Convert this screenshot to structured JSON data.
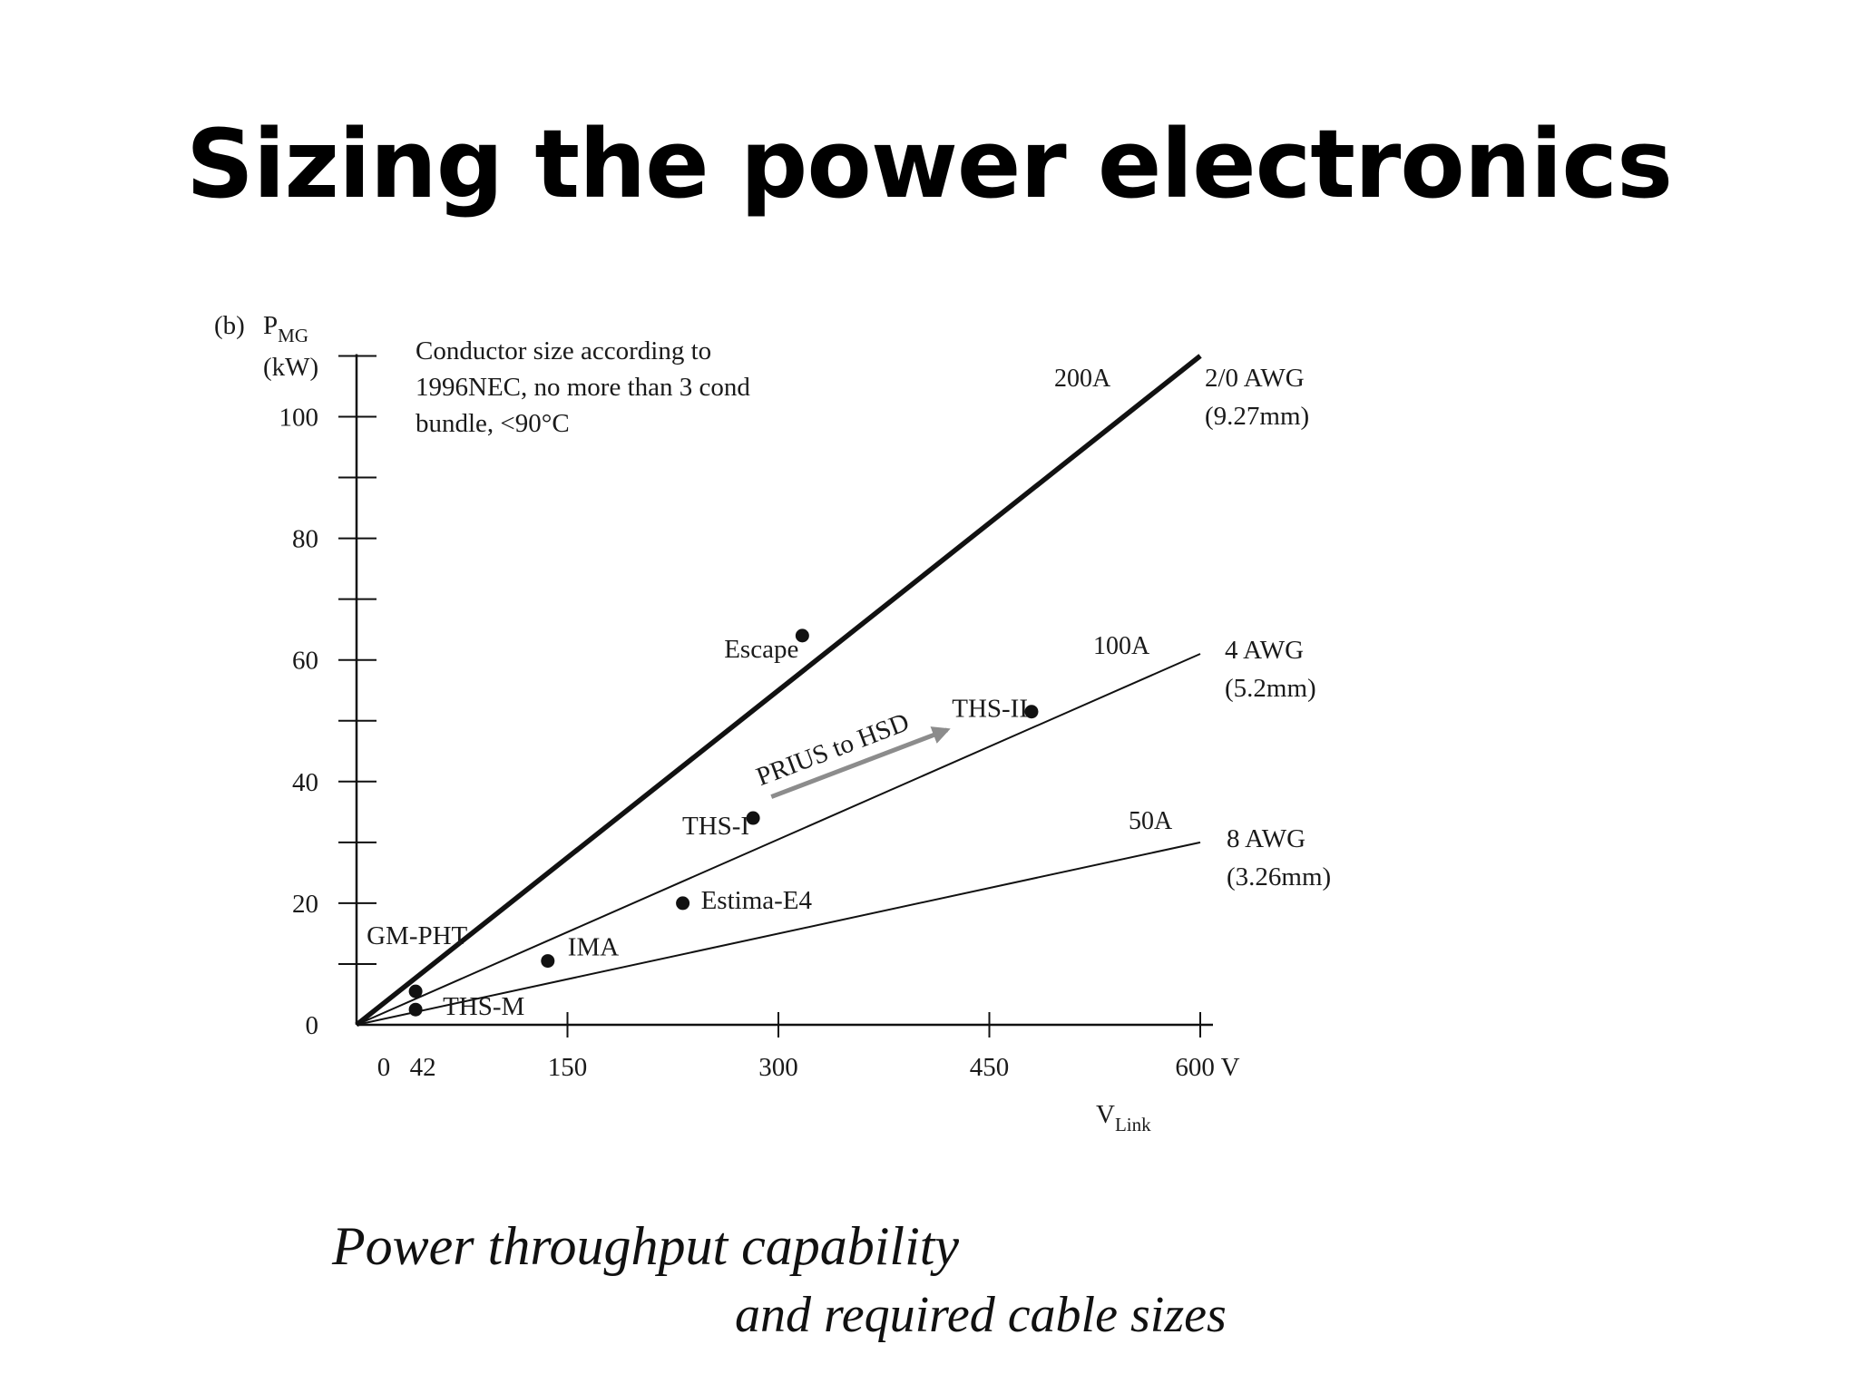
{
  "slide": {
    "title": "Sizing the power electronics",
    "caption_line1": "Power throughput capability",
    "caption_line2": "and required cable sizes"
  },
  "chart_data": {
    "type": "line",
    "panel_label": "(b)",
    "y_label_main": "P",
    "y_label_sub": "MG",
    "y_unit": "(kW)",
    "x_label_main": "V",
    "x_label_sub": "Link",
    "x_unit": "V",
    "xlim": [
      0,
      600
    ],
    "ylim": [
      0,
      110
    ],
    "x_ticks": [
      {
        "value": 0,
        "label": "0"
      },
      {
        "value": 42,
        "label": "42"
      },
      {
        "value": 150,
        "label": "150"
      },
      {
        "value": 300,
        "label": "300"
      },
      {
        "value": 450,
        "label": "450"
      },
      {
        "value": 600,
        "label": "600"
      }
    ],
    "y_ticks": [
      {
        "value": 0,
        "label": "0"
      },
      {
        "value": 20,
        "label": "20"
      },
      {
        "value": 40,
        "label": "40"
      },
      {
        "value": 60,
        "label": "60"
      },
      {
        "value": 80,
        "label": "80"
      },
      {
        "value": 100,
        "label": "100"
      }
    ],
    "y_minor_ticks": [
      10,
      30,
      50,
      70,
      90,
      110
    ],
    "note": [
      "Conductor size according to",
      "1996NEC, no more than 3 cond",
      "bundle, <90°C"
    ],
    "series": [
      {
        "name": "200A",
        "cable": "2/0 AWG",
        "diameter": "(9.27mm)",
        "x": [
          0,
          600
        ],
        "y": [
          0,
          110
        ],
        "weight": "heavy"
      },
      {
        "name": "100A",
        "cable": "4 AWG",
        "diameter": "(5.2mm)",
        "x": [
          0,
          600
        ],
        "y": [
          0,
          61
        ],
        "weight": "light"
      },
      {
        "name": "50A",
        "cable": "8 AWG",
        "diameter": "(3.26mm)",
        "x": [
          0,
          600
        ],
        "y": [
          0,
          30
        ],
        "weight": "light"
      }
    ],
    "points": [
      {
        "label": "Escape",
        "x": 317,
        "y": 64
      },
      {
        "label": "THS-II",
        "x": 480,
        "y": 51.5
      },
      {
        "label": "THS-I",
        "x": 282,
        "y": 34
      },
      {
        "label": "Estima-E4",
        "x": 232,
        "y": 20
      },
      {
        "label": "IMA",
        "x": 136,
        "y": 10.5
      },
      {
        "label": "GM-PHT",
        "x": 42,
        "y": 5.5
      },
      {
        "label": "THS-M",
        "x": 42,
        "y": 2.5
      }
    ],
    "annotation": {
      "text": "PRIUS to HSD",
      "from": {
        "x": 295,
        "y": 37.5
      },
      "to": {
        "x": 420,
        "y": 48.5
      }
    },
    "colors": {
      "line": "#111111",
      "arrow": "#8c8c8c",
      "point": "#111111"
    }
  }
}
